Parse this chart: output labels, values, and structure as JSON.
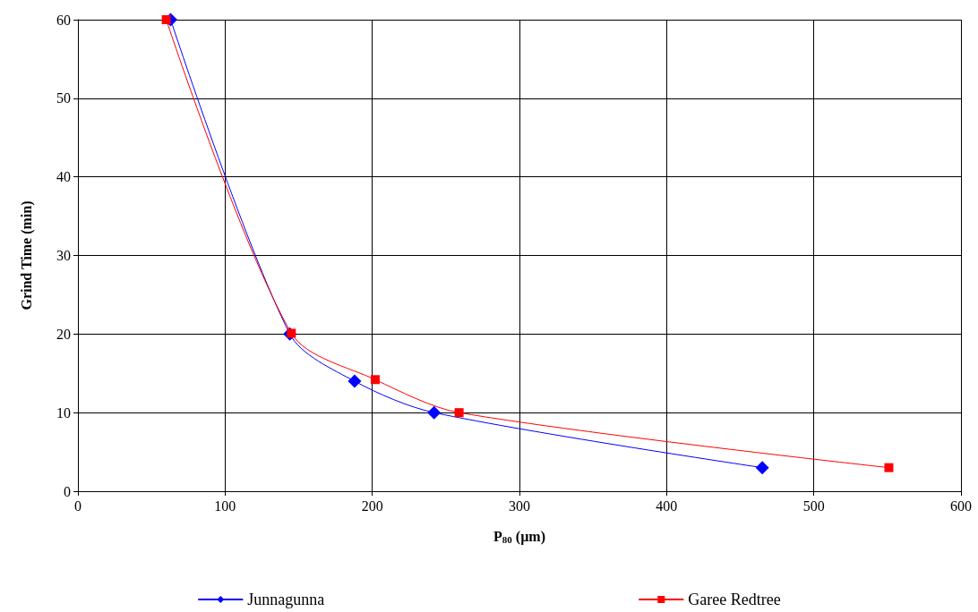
{
  "chart_data": {
    "type": "line",
    "xlabel": "P$_{80}$ (µm)",
    "ylabel": "Grind Time (min)",
    "xlim": [
      0,
      600
    ],
    "xticks": [
      0,
      100,
      200,
      300,
      400,
      500,
      600
    ],
    "ylim": [
      0,
      60
    ],
    "yticks": [
      0,
      10,
      20,
      30,
      40,
      50,
      60
    ],
    "grid": true,
    "legend": "bottom",
    "series": [
      {
        "name": "Junnagunna",
        "color": "#0000ff",
        "marker": "diamond",
        "x": [
          63,
          144,
          188,
          242,
          465
        ],
        "values": [
          60,
          20,
          14,
          10,
          3
        ]
      },
      {
        "name": "Garee Redtree",
        "color": "#ff0000",
        "marker": "square",
        "x": [
          60,
          145,
          202,
          259,
          551
        ],
        "values": [
          60,
          20.1,
          14.2,
          10,
          3
        ]
      }
    ]
  }
}
